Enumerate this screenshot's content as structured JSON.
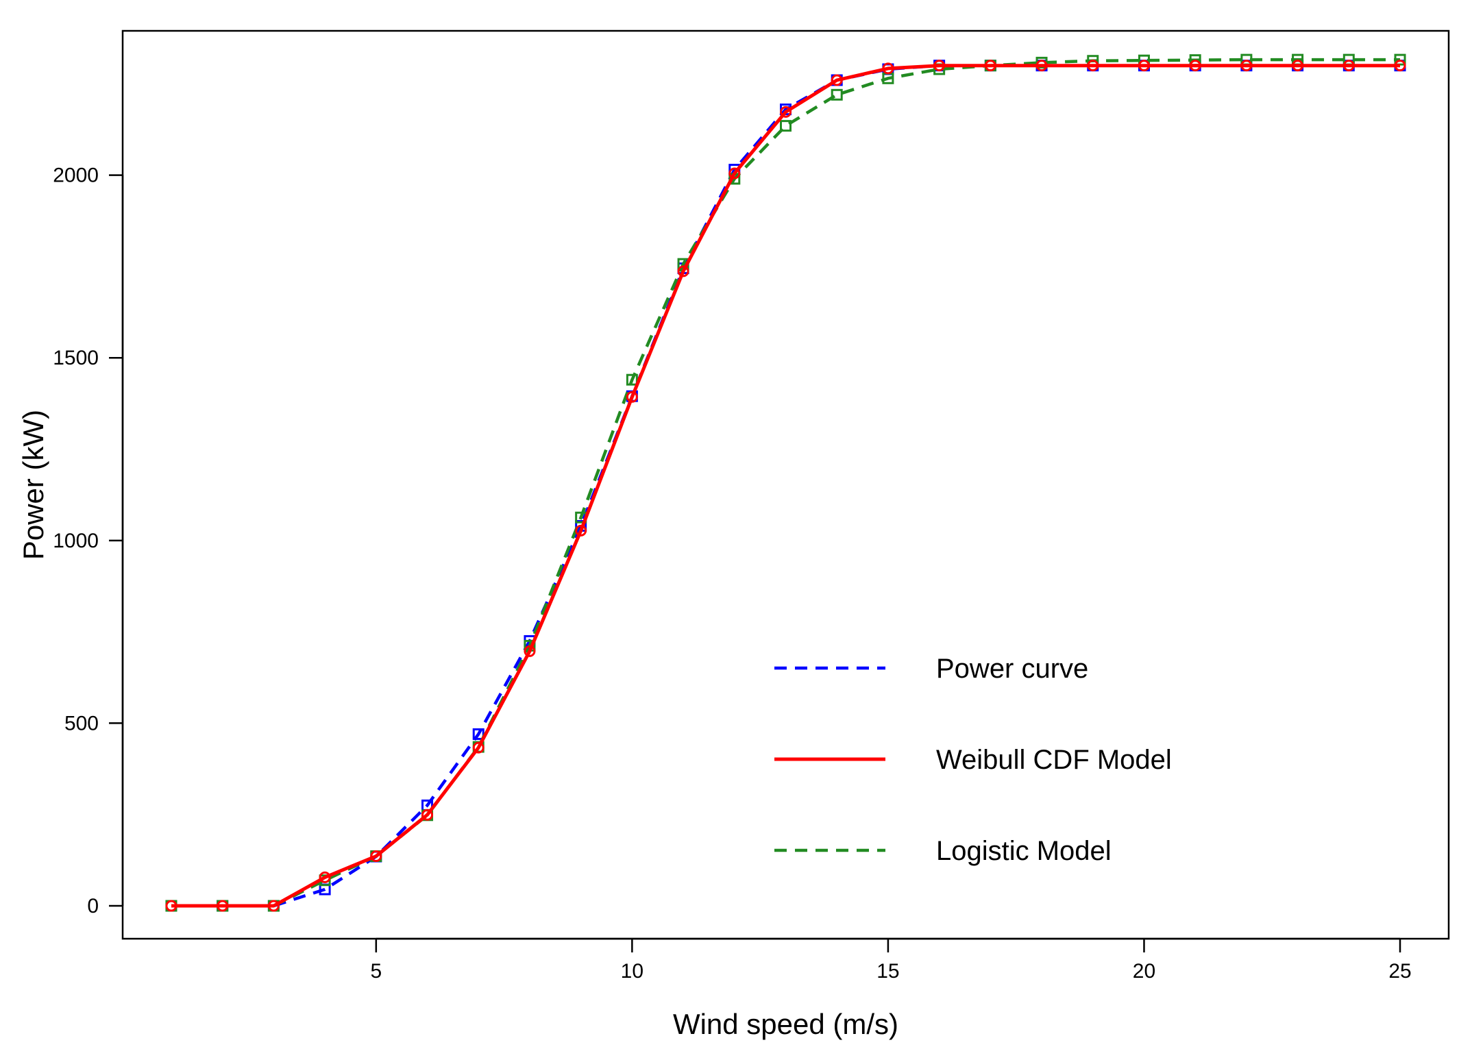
{
  "chart_data": {
    "type": "line",
    "title": "",
    "xlabel": "Wind speed (m/s)",
    "ylabel": "Power (kW)",
    "xlim": [
      0.05,
      25.95
    ],
    "ylim": [
      -90,
      2395
    ],
    "xticks": [
      5,
      10,
      15,
      20,
      25
    ],
    "yticks": [
      0,
      500,
      1000,
      1500,
      2000
    ],
    "grid": false,
    "legend_position": "bottom-right",
    "x": [
      1,
      2,
      3,
      4,
      5,
      6,
      7,
      8,
      9,
      10,
      11,
      12,
      13,
      14,
      15,
      16,
      17,
      18,
      19,
      20,
      21,
      22,
      23,
      24,
      25
    ],
    "series": [
      {
        "name": "Power curve",
        "color": "#0000ff",
        "line_style": "dashed",
        "marker": "square",
        "values": [
          0,
          0,
          0,
          45,
          135,
          275,
          470,
          725,
          1040,
          1395,
          1745,
          2015,
          2180,
          2260,
          2290,
          2300,
          2300,
          2300,
          2300,
          2300,
          2300,
          2300,
          2300,
          2300,
          2300
        ]
      },
      {
        "name": "Weibull CDF Model",
        "color": "#ff0000",
        "line_style": "solid",
        "marker": "circle",
        "values": [
          0,
          0,
          0,
          78,
          136,
          249,
          433,
          697,
          1027,
          1393,
          1737,
          2005,
          2173,
          2260,
          2292,
          2300,
          2300,
          2300,
          2300,
          2300,
          2300,
          2300,
          2300,
          2300,
          2300
        ]
      },
      {
        "name": "Logistic Model",
        "color": "#228b22",
        "line_style": "dashed",
        "marker": "square",
        "values": [
          0,
          0,
          0,
          70,
          136,
          248,
          435,
          712,
          1063,
          1440,
          1757,
          1990,
          2135,
          2220,
          2265,
          2290,
          2300,
          2308,
          2313,
          2314,
          2315,
          2316,
          2316,
          2316,
          2316
        ]
      }
    ]
  }
}
